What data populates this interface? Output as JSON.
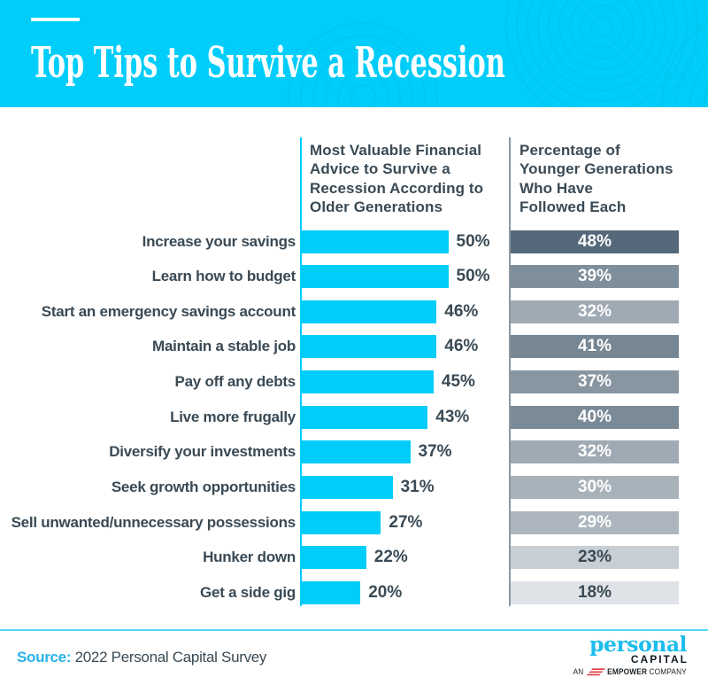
{
  "header": {
    "title": "Top Tips to Survive a Recession"
  },
  "chart_data": {
    "type": "bar",
    "orientation": "horizontal",
    "value_suffix": "%",
    "categories": [
      "Increase your savings",
      "Learn how to budget",
      "Start an emergency savings account",
      "Maintain a stable job",
      "Pay off any debts",
      "Live more frugally",
      "Diversify your investments",
      "Seek growth opportunities",
      "Sell unwanted/unnecessary possessions",
      "Hunker down",
      "Get a side gig"
    ],
    "series": [
      {
        "name": "Most Valuable Financial Advice to Survive a Recession According to Older Generations",
        "header_lines": "Most Valuable Financial\nAdvice to Survive a\nRecession According to\nOlder Generations",
        "values": [
          50,
          50,
          46,
          46,
          45,
          43,
          37,
          31,
          27,
          22,
          20
        ],
        "bar_color": "#00cdf9"
      },
      {
        "name": "Percentage of Younger Generations Who Have Followed Each",
        "header_lines": "Percentage of\nYounger Generations\nWho Have\nFollowed Each",
        "values": [
          48,
          39,
          32,
          41,
          37,
          40,
          32,
          30,
          29,
          23,
          18
        ],
        "bar_colors": [
          "#56697a",
          "#7f8e9b",
          "#9faab4",
          "#768693",
          "#8896a2",
          "#7b8a97",
          "#9faab4",
          "#a8b2bb",
          "#adb6bf",
          "#c8cfd5",
          "#dfe3e7"
        ],
        "label_colors": [
          "#ffffff",
          "#ffffff",
          "#ffffff",
          "#ffffff",
          "#ffffff",
          "#ffffff",
          "#ffffff",
          "#ffffff",
          "#ffffff",
          "#3a4a55",
          "#3a4a55"
        ]
      }
    ]
  },
  "footer": {
    "source_label": "Source:",
    "source_text": " 2022 Personal Capital Survey",
    "logo": {
      "wordmark": "personal",
      "submark": "CAPITAL",
      "tagline_prefix": "AN",
      "tagline_bold": "EMPOWER",
      "tagline_suffix": "COMPANY"
    }
  },
  "colors": {
    "brand_cyan": "#00cdf9",
    "dark_slate": "#3a4a55",
    "logo_cyan": "#1cbdeb",
    "swoosh_red": "#e0393e"
  }
}
